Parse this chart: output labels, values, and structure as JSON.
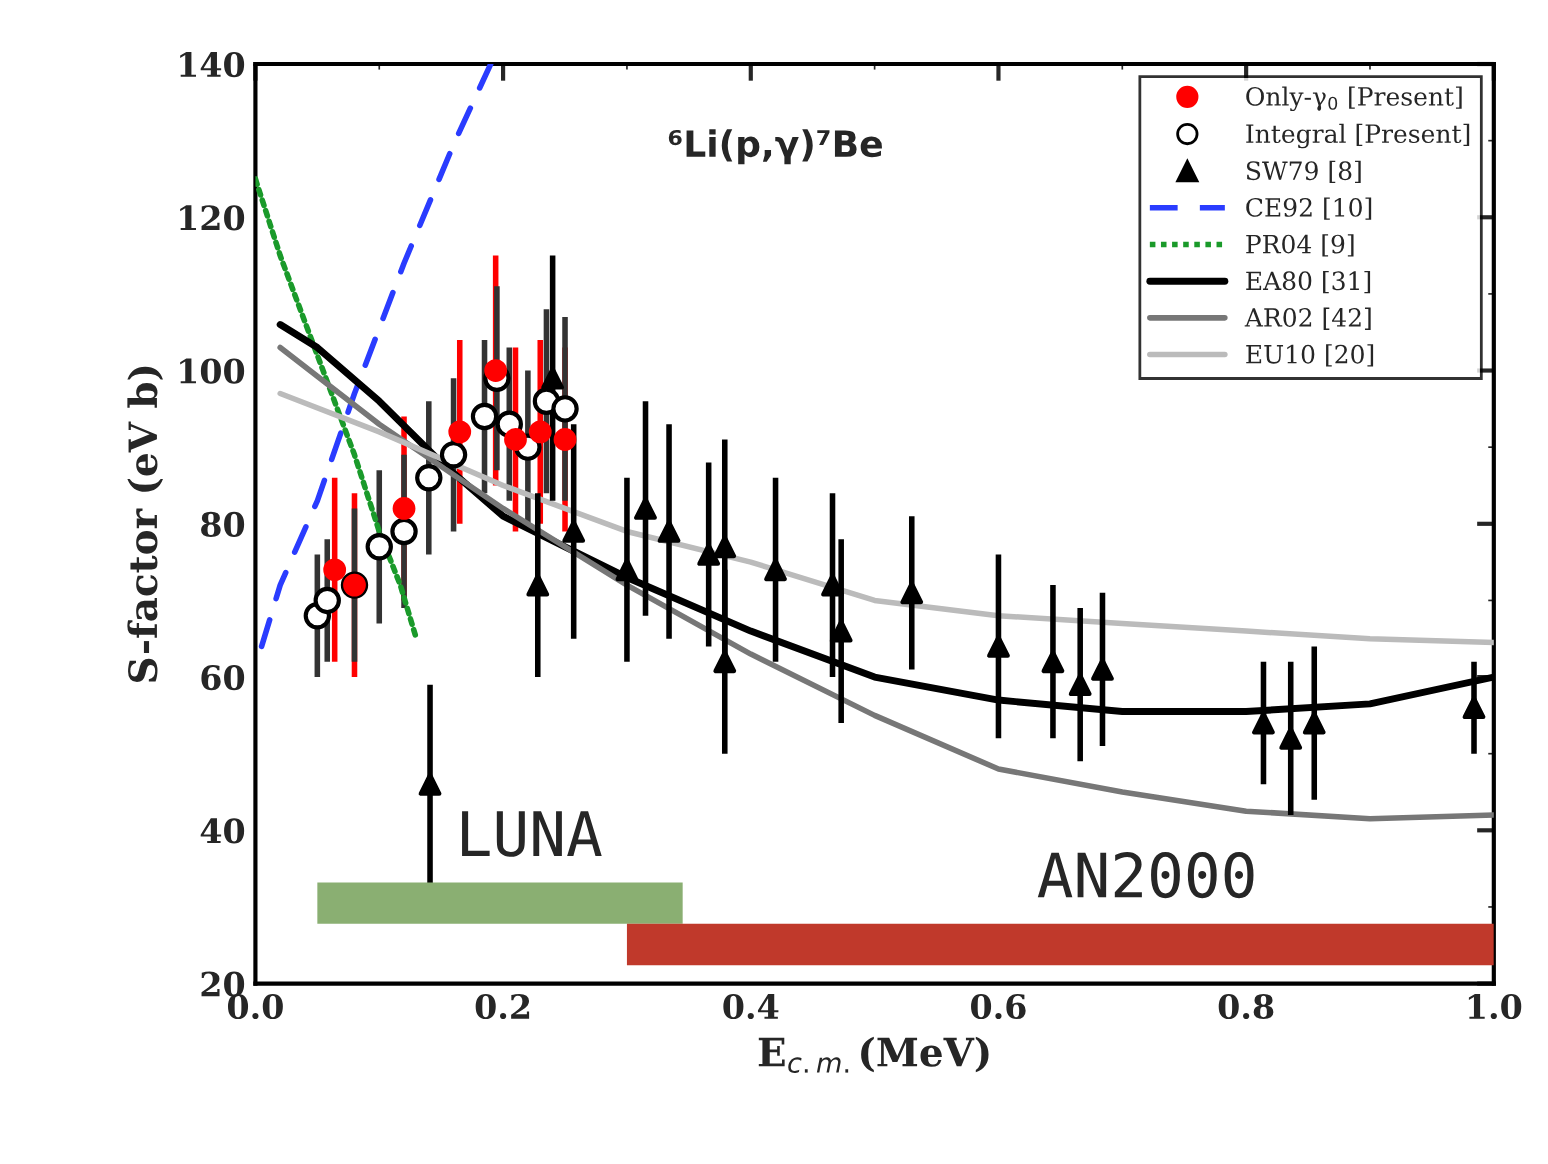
{
  "chart_data": {
    "type": "scatter",
    "title": "⁶Li(p,γ)⁷Be",
    "xlabel": "E$_{c.m.}$(MeV)",
    "ylabel": "S-factor (eV b)",
    "xlim": [
      0.0,
      1.0
    ],
    "xticks": [
      {
        "value": 0.0,
        "label": "0.0"
      },
      {
        "value": 0.2,
        "label": "0.2"
      },
      {
        "value": 0.4,
        "label": "0.4"
      },
      {
        "value": 0.6,
        "label": "0.6"
      },
      {
        "value": 0.8,
        "label": "0.8"
      },
      {
        "value": 1.0,
        "label": "1.0"
      }
    ],
    "ylim": [
      20,
      140
    ],
    "yticks": [
      20,
      40,
      60,
      80,
      100,
      120,
      140
    ],
    "grid": false,
    "legend": "top right",
    "series": [
      {
        "name": "Only-γ$_{0}$ [Present]",
        "marker": "circle",
        "color": "#ff0000",
        "x": [
          0.064,
          0.08,
          0.12,
          0.165,
          0.194,
          0.21,
          0.23,
          0.25
        ],
        "values": [
          74,
          72,
          82,
          92,
          100,
          91,
          92,
          91
        ],
        "errors": [
          12,
          12,
          12,
          12,
          15,
          12,
          12,
          12
        ]
      },
      {
        "name": "Integral [Present]",
        "marker": "circle",
        "color": "#000000",
        "x": [
          0.05,
          0.058,
          0.08,
          0.1,
          0.12,
          0.14,
          0.16,
          0.185,
          0.195,
          0.205,
          0.22,
          0.235,
          0.25
        ],
        "values": [
          68,
          70,
          72,
          77,
          79,
          86,
          89,
          94,
          99,
          93,
          90,
          96,
          95
        ],
        "errors": [
          8,
          8,
          10,
          10,
          10,
          10,
          10,
          10,
          12,
          10,
          10,
          12,
          12
        ]
      },
      {
        "name": "SW79 [8]",
        "marker": "triangle",
        "color": "#000000",
        "x": [
          0.141,
          0.228,
          0.24,
          0.257,
          0.3,
          0.315,
          0.334,
          0.366,
          0.379,
          0.379,
          0.42,
          0.466,
          0.473,
          0.53,
          0.6,
          0.644,
          0.666,
          0.684,
          0.814,
          0.836,
          0.855,
          0.984
        ],
        "values": [
          46,
          72,
          99,
          79,
          74,
          82,
          79,
          76,
          77,
          62,
          74,
          72,
          66,
          71,
          64,
          62,
          59,
          61,
          54,
          52,
          54,
          56
        ],
        "errors": [
          13,
          12,
          16,
          14,
          12,
          14,
          14,
          12,
          14,
          12,
          12,
          12,
          12,
          10,
          12,
          10,
          10,
          10,
          8,
          10,
          10,
          6
        ]
      },
      {
        "name": "CE92 [10]",
        "type": "line",
        "line_style": "dashed",
        "color": "#2a3cff",
        "x": [
          0.005,
          0.02,
          0.05,
          0.08,
          0.12,
          0.16,
          0.19
        ],
        "values": [
          64,
          72,
          83,
          97,
          114,
          129.5,
          140
        ]
      },
      {
        "name": "PR04 [9]",
        "type": "line",
        "line_style": "dotted",
        "color": "#1a9a2a",
        "x": [
          0.0,
          0.02,
          0.05,
          0.08,
          0.1,
          0.117,
          0.13
        ],
        "values": [
          125,
          115,
          102,
          89,
          79,
          72,
          65
        ]
      },
      {
        "name": "EA80 [31]",
        "type": "line",
        "line_style": "solid",
        "color": "#000000",
        "x": [
          0.02,
          0.05,
          0.1,
          0.15,
          0.2,
          0.25,
          0.3,
          0.4,
          0.5,
          0.6,
          0.7,
          0.8,
          0.9,
          1.0
        ],
        "values": [
          106,
          103,
          96,
          88,
          81,
          77,
          73,
          66,
          60,
          57,
          55.5,
          55.5,
          56.5,
          60
        ]
      },
      {
        "name": "AR02 [42]",
        "type": "line",
        "line_style": "solid",
        "color": "#777777",
        "x": [
          0.02,
          0.1,
          0.2,
          0.3,
          0.4,
          0.5,
          0.6,
          0.7,
          0.8,
          0.9,
          1.0
        ],
        "values": [
          103,
          93,
          82,
          72,
          63,
          55,
          48,
          45,
          42.5,
          41.5,
          42
        ]
      },
      {
        "name": "EU10 [20]",
        "type": "line",
        "line_style": "solid",
        "color": "#bbbbbb",
        "x": [
          0.02,
          0.1,
          0.2,
          0.3,
          0.4,
          0.5,
          0.6,
          0.7,
          0.8,
          0.9,
          1.0
        ],
        "values": [
          97,
          92,
          85,
          79,
          75,
          70,
          68,
          67,
          66,
          65,
          64.5
        ]
      }
    ],
    "bands": [
      {
        "axis": "x",
        "from": 0.05,
        "to": 0.345,
        "label": "LUNA",
        "color": "#8aaf72"
      },
      {
        "axis": "x",
        "from": 0.3,
        "to": 1.0,
        "label": "AN2000",
        "color": "#c0392b"
      }
    ]
  }
}
